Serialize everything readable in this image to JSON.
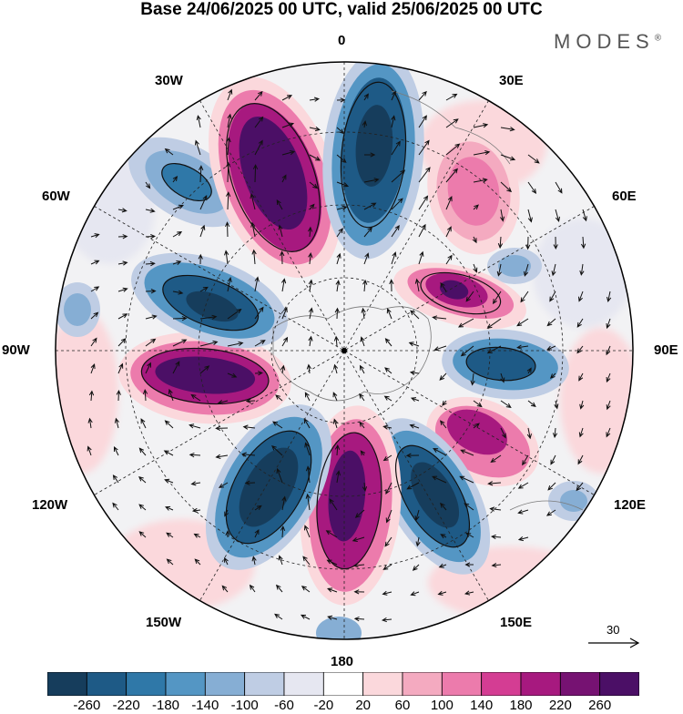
{
  "title": "Base 24/06/2025 00 UTC, valid 25/06/2025 00 UTC",
  "brand": "MODES",
  "brand_mark": "®",
  "longitudes": {
    "top": "0",
    "bottom": "180",
    "left": "90W",
    "right": "90E",
    "nw": "30W",
    "ne": "30E",
    "wnw": "60W",
    "ene": "60E",
    "wsw": "120W",
    "ese": "120E",
    "sw": "150W",
    "se": "150E"
  },
  "reference_vector": "30",
  "colorbar": {
    "labels": [
      "-260",
      "-220",
      "-180",
      "-140",
      "-100",
      "-60",
      "-20",
      "20",
      "60",
      "100",
      "140",
      "180",
      "220",
      "260"
    ],
    "colors": [
      "#163d5c",
      "#1e5a86",
      "#2f78a8",
      "#5496c4",
      "#86aed4",
      "#bfcde4",
      "#e6e7f1",
      "#ffffff",
      "#fbd8dc",
      "#f4aac0",
      "#ec7bac",
      "#d43d93",
      "#a7197f",
      "#761272",
      "#4b0f66"
    ]
  }
}
